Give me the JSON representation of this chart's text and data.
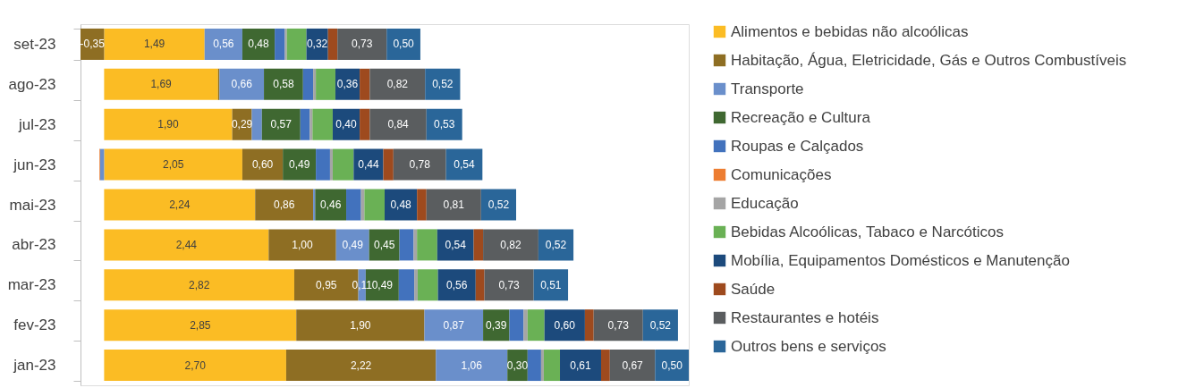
{
  "chart_data": {
    "type": "bar",
    "orientation": "horizontal",
    "stacked": true,
    "legend": "right",
    "tick_labels": "y",
    "categories": [
      "set-23",
      "ago-23",
      "jul-23",
      "jun-23",
      "mai-23",
      "abr-23",
      "mar-23",
      "fev-23",
      "jan-23"
    ],
    "series": [
      {
        "name": "Alimentos e bebidas não alcoólicas",
        "color": "#fbbc24",
        "values": [
          1.49,
          1.69,
          1.9,
          2.05,
          2.24,
          2.44,
          2.82,
          2.85,
          2.7
        ],
        "value_labels": [
          "1,49",
          "1,69",
          "1,90",
          "2,05",
          "2,24",
          "2,44",
          "2,82",
          "2,85",
          "2,70"
        ]
      },
      {
        "name": "Habitação, Água, Eletricidade, Gás e Outros Combustíveis",
        "color": "#8e6e23",
        "values": [
          -0.35,
          0.02,
          0.29,
          0.6,
          0.86,
          1.0,
          0.95,
          1.9,
          2.22
        ],
        "value_labels": [
          "-0,35",
          null,
          "0,29",
          "0,60",
          "0,86",
          "1,00",
          "0,95",
          "1,90",
          "2,22"
        ]
      },
      {
        "name": "Transporte",
        "color": "#6a8fcb",
        "values": [
          0.56,
          0.66,
          0.15,
          -0.06,
          0.03,
          0.49,
          0.11,
          0.87,
          1.06
        ],
        "value_labels": [
          "0,56",
          "0,66",
          null,
          null,
          null,
          "0,49",
          "0,11",
          "0,87",
          "1,06"
        ]
      },
      {
        "name": "Recreação e Cultura",
        "color": "#3f6831",
        "values": [
          0.48,
          0.58,
          0.57,
          0.49,
          0.46,
          0.45,
          0.49,
          0.39,
          0.3
        ],
        "value_labels": [
          "0,48",
          "0,58",
          "0,57",
          "0,49",
          "0,46",
          "0,45",
          "0,49",
          "0,39",
          "0,30"
        ]
      },
      {
        "name": "Roupas e Calçados",
        "color": "#4272bd",
        "values": [
          0.15,
          0.15,
          0.14,
          0.21,
          0.22,
          0.21,
          0.23,
          0.21,
          0.2
        ],
        "value_labels": [
          null,
          null,
          null,
          null,
          null,
          null,
          null,
          null,
          null
        ]
      },
      {
        "name": "Comunicações",
        "color": "#ed7d31",
        "values": [
          null,
          null,
          null,
          -0.01,
          null,
          null,
          null,
          null,
          null
        ],
        "value_labels": [
          null,
          null,
          null,
          null,
          null,
          null,
          null,
          null,
          null
        ]
      },
      {
        "name": "Educação",
        "color": "#a5a5a5",
        "values": [
          0.03,
          0.04,
          0.04,
          0.04,
          0.05,
          0.05,
          0.05,
          0.06,
          0.04
        ],
        "value_labels": [
          null,
          null,
          null,
          null,
          null,
          null,
          null,
          null,
          null
        ]
      },
      {
        "name": "Bebidas Alcoólicas, Tabaco e Narcóticos",
        "color": "#6ab155",
        "values": [
          0.29,
          0.29,
          0.3,
          0.31,
          0.3,
          0.3,
          0.3,
          0.25,
          0.24
        ],
        "value_labels": [
          null,
          null,
          null,
          null,
          null,
          null,
          null,
          null,
          null
        ]
      },
      {
        "name": "Mobília, Equipamentos Domésticos e Manutenção",
        "color": "#1c4a7c",
        "values": [
          0.32,
          0.36,
          0.4,
          0.44,
          0.48,
          0.54,
          0.56,
          0.6,
          0.61
        ],
        "value_labels": [
          "0,32",
          "0,36",
          "0,40",
          "0,44",
          "0,48",
          "0,54",
          "0,56",
          "0,60",
          "0,61"
        ]
      },
      {
        "name": "Saúde",
        "color": "#9e4a1e",
        "values": [
          0.14,
          0.15,
          0.15,
          0.15,
          0.14,
          0.14,
          0.13,
          0.13,
          0.13
        ],
        "value_labels": [
          null,
          null,
          null,
          null,
          null,
          null,
          null,
          null,
          null
        ]
      },
      {
        "name": "Restaurantes e hotéis",
        "color": "#5a5d5f",
        "values": [
          0.73,
          0.82,
          0.84,
          0.78,
          0.81,
          0.82,
          0.73,
          0.73,
          0.67
        ],
        "value_labels": [
          "0,73",
          "0,82",
          "0,84",
          "0,78",
          "0,81",
          "0,82",
          "0,73",
          "0,73",
          "0,67"
        ]
      },
      {
        "name": "Outros bens e serviços",
        "color": "#2a6699",
        "values": [
          0.5,
          0.52,
          0.53,
          0.54,
          0.52,
          0.52,
          0.51,
          0.52,
          0.5
        ],
        "value_labels": [
          "0,50",
          "0,52",
          "0,53",
          "0,54",
          "0,52",
          "0,52",
          "0,51",
          "0,52",
          "0,50"
        ]
      }
    ]
  }
}
